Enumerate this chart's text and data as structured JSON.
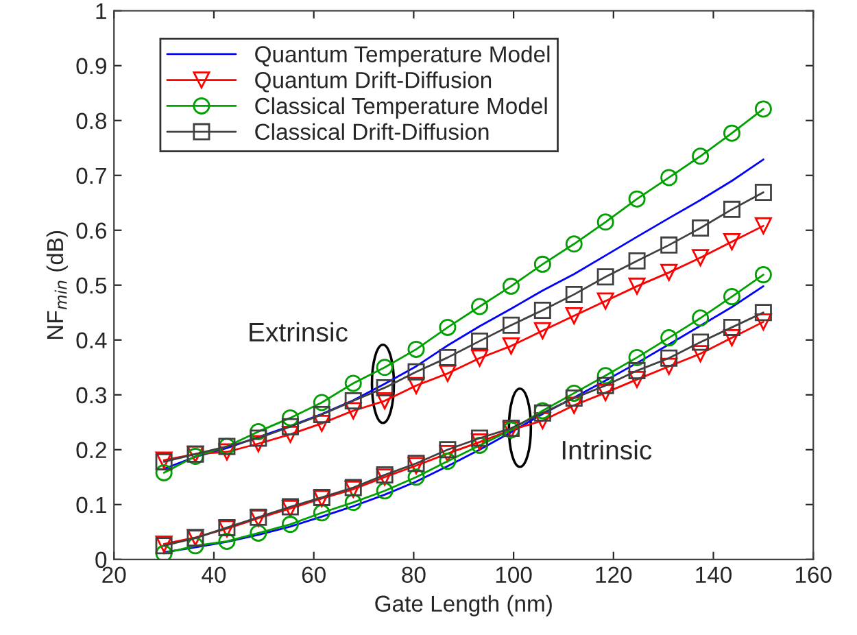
{
  "chart_data": {
    "type": "line",
    "xlabel": "Gate Length (nm)",
    "ylabel": "NF$_{min}$ (dB)",
    "x": [
      30,
      36.3,
      42.6,
      48.9,
      55.3,
      61.6,
      67.9,
      74.2,
      80.5,
      86.8,
      93.2,
      99.5,
      105.8,
      112.1,
      118.4,
      124.7,
      131.1,
      137.4,
      143.7,
      150
    ],
    "xlim": [
      20,
      160
    ],
    "xticks": [
      20,
      40,
      60,
      80,
      100,
      120,
      140,
      160
    ],
    "ylim": [
      0,
      1
    ],
    "yticks": [
      0,
      0.1,
      0.2,
      0.3,
      0.4,
      0.5,
      0.6,
      0.7,
      0.8,
      0.9,
      1
    ],
    "grid": false,
    "legend": "top left",
    "line_style": "solid",
    "annotations": [
      "Extrinsic",
      "Intrinsic"
    ],
    "series": [
      {
        "name": "Quantum Temperature Model",
        "color": "#0000ff",
        "marker": "none",
        "values": [
          0.165,
          0.187,
          0.203,
          0.223,
          0.243,
          0.265,
          0.29,
          0.32,
          0.352,
          0.39,
          0.425,
          0.457,
          0.49,
          0.52,
          0.554,
          0.588,
          0.622,
          0.655,
          0.69,
          0.729
        ]
      },
      {
        "name": "Quantum Drift-Diffusion",
        "color": "#ff0000",
        "marker": "triangle",
        "values": [
          0.181,
          0.192,
          0.196,
          0.211,
          0.228,
          0.248,
          0.271,
          0.289,
          0.317,
          0.339,
          0.367,
          0.389,
          0.417,
          0.444,
          0.471,
          0.498,
          0.523,
          0.55,
          0.579,
          0.608
        ]
      },
      {
        "name": "Classical Temperature Model",
        "color": "#00a000",
        "marker": "circle",
        "values": [
          0.158,
          0.188,
          0.206,
          0.233,
          0.258,
          0.286,
          0.321,
          0.35,
          0.383,
          0.423,
          0.461,
          0.498,
          0.538,
          0.575,
          0.615,
          0.657,
          0.696,
          0.735,
          0.777,
          0.821
        ]
      },
      {
        "name": "Classical Drift-Diffusion",
        "color": "#404040",
        "marker": "square",
        "values": [
          0.178,
          0.192,
          0.206,
          0.221,
          0.242,
          0.264,
          0.289,
          0.313,
          0.342,
          0.368,
          0.398,
          0.427,
          0.454,
          0.483,
          0.515,
          0.544,
          0.573,
          0.604,
          0.638,
          0.669
        ]
      },
      {
        "color": "#0000ff",
        "marker": "none",
        "values": [
          0.013,
          0.022,
          0.032,
          0.045,
          0.06,
          0.078,
          0.097,
          0.118,
          0.142,
          0.17,
          0.2,
          0.232,
          0.265,
          0.295,
          0.326,
          0.358,
          0.392,
          0.426,
          0.46,
          0.498
        ]
      },
      {
        "color": "#ff0000",
        "marker": "triangle",
        "values": [
          0.028,
          0.04,
          0.056,
          0.075,
          0.093,
          0.111,
          0.128,
          0.15,
          0.171,
          0.193,
          0.214,
          0.236,
          0.253,
          0.281,
          0.304,
          0.328,
          0.352,
          0.375,
          0.404,
          0.433
        ]
      },
      {
        "color": "#00a000",
        "marker": "circle",
        "values": [
          0.011,
          0.025,
          0.033,
          0.048,
          0.064,
          0.085,
          0.104,
          0.125,
          0.15,
          0.179,
          0.208,
          0.236,
          0.271,
          0.303,
          0.335,
          0.368,
          0.404,
          0.44,
          0.479,
          0.519
        ]
      },
      {
        "color": "#404040",
        "marker": "square",
        "values": [
          0.025,
          0.039,
          0.058,
          0.077,
          0.096,
          0.113,
          0.131,
          0.154,
          0.175,
          0.2,
          0.221,
          0.239,
          0.267,
          0.294,
          0.317,
          0.344,
          0.367,
          0.396,
          0.423,
          0.45
        ]
      }
    ]
  }
}
